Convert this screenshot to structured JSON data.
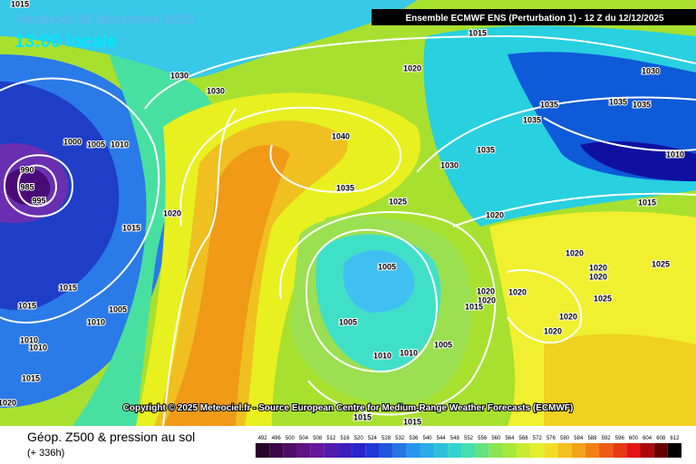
{
  "header": {
    "date": "Vendredi 26 décembre 2025",
    "time": "13:00 locale",
    "model": "Ensemble ECMWF ENS  (Perturbation 1)  -  12 Z du 12/12/2025"
  },
  "copyright": "Copyright © 2025 Meteociel.fr - Source European Centre for Medium-Range Weather Forecasts (ECMWF)",
  "footer": {
    "title": "Géop. Z500 & pression au sol",
    "lead": "(+ 336h)"
  },
  "isobar_labels": [
    "1015",
    "1015",
    "1020",
    "1030",
    "1030",
    "1030",
    "1035",
    "1035",
    "1035",
    "1035",
    "1040",
    "1000",
    "1005",
    "1010",
    "990",
    "985",
    "995",
    "1035",
    "1030",
    "1035",
    "1025",
    "1020",
    "1020",
    "1015",
    "1015",
    "1010",
    "1020",
    "1025",
    "1020",
    "1020",
    "1025",
    "1005",
    "1020",
    "1020",
    "1020",
    "1015",
    "1020",
    "1005",
    "1005",
    "1010",
    "1010",
    "1020",
    "1015",
    "1015",
    "1005",
    "1010",
    "1010",
    "1010",
    "1015",
    "1020",
    "1015",
    "1015"
  ],
  "legend": {
    "values": [
      492,
      496,
      500,
      504,
      508,
      512,
      516,
      520,
      524,
      528,
      532,
      536,
      540,
      544,
      548,
      552,
      556,
      560,
      564,
      568,
      572,
      576,
      580,
      584,
      588,
      592,
      596,
      600,
      604,
      608,
      612
    ]
  }
}
